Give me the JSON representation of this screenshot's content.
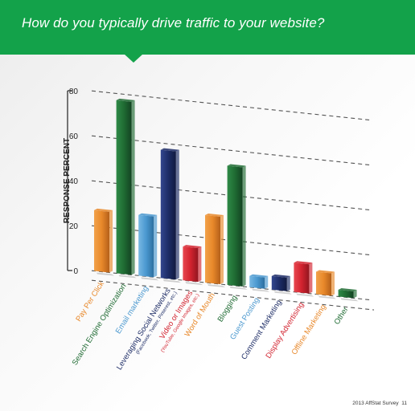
{
  "title": "How do you typically drive traffic to your website?",
  "footer": "2013 AffStat Survey",
  "page_number": "11",
  "colors": {
    "header_bg": "#13a24a",
    "orange": "#e8882a",
    "green": "#1f6b33",
    "light_blue": "#4a98cf",
    "navy": "#1d2c66",
    "red": "#d2232f"
  },
  "chart_data": {
    "type": "bar",
    "ylabel": "RESPONSE PERCENT",
    "ylim": [
      0,
      80
    ],
    "yticks": [
      0,
      20,
      40,
      60,
      80
    ],
    "grid": true,
    "categories": [
      {
        "label": "Pay Per Click",
        "sub": "",
        "value": 27,
        "color": "orange"
      },
      {
        "label": "Search Engine Optimization",
        "sub": "",
        "value": 77,
        "color": "green"
      },
      {
        "label": "Email marketing",
        "sub": "",
        "value": 27,
        "color": "light_blue"
      },
      {
        "label": "Leveraging Social Networks",
        "sub": "(Facebook, Twitter, Pinterest, etc.)",
        "value": 57,
        "color": "navy"
      },
      {
        "label": "Video or Images",
        "sub": "(YouTube, Google Images, etc.)",
        "value": 15,
        "color": "red"
      },
      {
        "label": "Word of Mouth",
        "sub": "",
        "value": 30,
        "color": "orange"
      },
      {
        "label": "Blogging",
        "sub": "",
        "value": 53,
        "color": "green"
      },
      {
        "label": "Guest Posting",
        "sub": "",
        "value": 5,
        "color": "light_blue"
      },
      {
        "label": "Comment Marketing",
        "sub": "",
        "value": 6,
        "color": "navy"
      },
      {
        "label": "Display Advertising",
        "sub": "",
        "value": 13,
        "color": "red"
      },
      {
        "label": "Offline Marketing",
        "sub": "",
        "value": 10,
        "color": "orange"
      },
      {
        "label": "Other",
        "sub": "",
        "value": 3,
        "color": "green"
      }
    ]
  }
}
